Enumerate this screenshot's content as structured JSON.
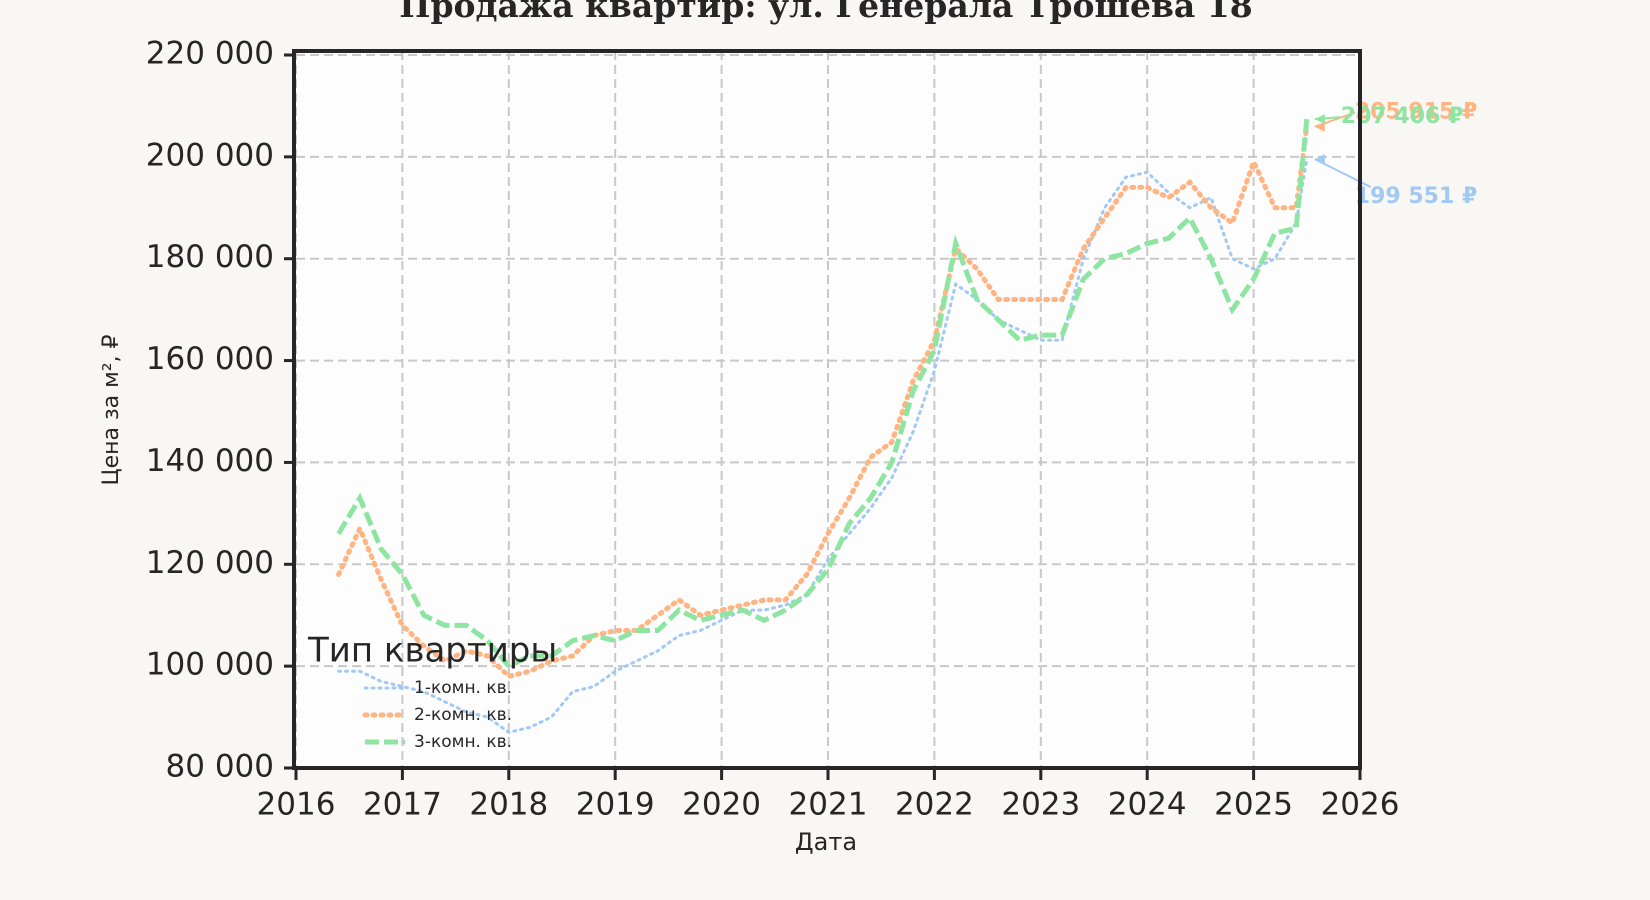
{
  "chart_data": {
    "type": "line",
    "title": "Продажа квартир: ул. Генерала Трошева 18",
    "x_label": "Дата",
    "y_label": "Цена за м², ₽",
    "xlim": [
      2016,
      2026
    ],
    "xticks": [
      2016,
      2017,
      2018,
      2019,
      2020,
      2021,
      2022,
      2023,
      2024,
      2025,
      2026
    ],
    "ylim": [
      80000,
      220000
    ],
    "yticks": [
      {
        "value": 80000,
        "label": "80 000"
      },
      {
        "value": 100000,
        "label": "100 000"
      },
      {
        "value": 120000,
        "label": "120 000"
      },
      {
        "value": 140000,
        "label": "140 000"
      },
      {
        "value": 160000,
        "label": "160 000"
      },
      {
        "value": 180000,
        "label": "180 000"
      },
      {
        "value": 200000,
        "label": "200 000"
      },
      {
        "value": 220000,
        "label": "220 000"
      }
    ],
    "grid": true,
    "legend_title": "Тип квартиры",
    "legend_loc": "lower left",
    "x": [
      2016.4,
      2016.6,
      2016.8,
      2017.0,
      2017.2,
      2017.4,
      2017.6,
      2017.8,
      2018.0,
      2018.2,
      2018.4,
      2018.6,
      2018.8,
      2019.0,
      2019.2,
      2019.4,
      2019.6,
      2019.8,
      2020.0,
      2020.2,
      2020.4,
      2020.6,
      2020.8,
      2021.0,
      2021.2,
      2021.4,
      2021.6,
      2021.8,
      2022.0,
      2022.2,
      2022.4,
      2022.6,
      2022.8,
      2023.0,
      2023.2,
      2023.4,
      2023.6,
      2023.8,
      2024.0,
      2024.2,
      2024.4,
      2024.6,
      2024.8,
      2025.0,
      2025.2,
      2025.4,
      2025.5
    ],
    "series": [
      {
        "name": "1-комн. кв.",
        "color": "#a1c9f4",
        "linestyle": "dotted",
        "values": [
          99000,
          99000,
          97000,
          96000,
          95000,
          93000,
          91000,
          90000,
          87000,
          88000,
          90000,
          95000,
          96000,
          99000,
          101000,
          103000,
          106000,
          107000,
          109000,
          111000,
          111000,
          112000,
          114000,
          121000,
          126000,
          131000,
          137000,
          146000,
          158000,
          175000,
          172000,
          168000,
          166000,
          164000,
          164000,
          180000,
          190000,
          196000,
          197000,
          193000,
          190000,
          192000,
          180000,
          178000,
          180000,
          187000,
          199551
        ]
      },
      {
        "name": "2-комн. кв.",
        "color": "#ffb482",
        "linestyle": "dotted-thick",
        "values": [
          118000,
          127000,
          117000,
          108000,
          104000,
          101000,
          103000,
          102000,
          98000,
          99000,
          101000,
          102000,
          106000,
          107000,
          107000,
          110000,
          113000,
          110000,
          111000,
          112000,
          113000,
          113000,
          118000,
          126000,
          133000,
          141000,
          144000,
          156000,
          164000,
          182000,
          178000,
          172000,
          172000,
          172000,
          172000,
          182000,
          188000,
          194000,
          194000,
          192000,
          195000,
          190000,
          187000,
          199000,
          190000,
          190000,
          205915
        ]
      },
      {
        "name": "3-комн. кв.",
        "color": "#8de5a1",
        "linestyle": "dashed",
        "values": [
          126000,
          133000,
          123000,
          118000,
          110000,
          108000,
          108000,
          105000,
          100000,
          102000,
          102000,
          105000,
          106000,
          105000,
          107000,
          107000,
          111000,
          109000,
          110000,
          111000,
          109000,
          111000,
          114000,
          119000,
          128000,
          133000,
          140000,
          154000,
          162000,
          183000,
          172000,
          168000,
          164000,
          165000,
          165000,
          176000,
          180000,
          181000,
          183000,
          184000,
          188000,
          180000,
          170000,
          176000,
          185000,
          186000,
          207406
        ]
      }
    ],
    "annotations": [
      {
        "text": "199 551 ₽",
        "color": "#a1c9f4"
      },
      {
        "text": "205 915 ₽",
        "color": "#ffb482"
      },
      {
        "text": "207 406 ₽",
        "color": "#8de5a1"
      }
    ]
  }
}
